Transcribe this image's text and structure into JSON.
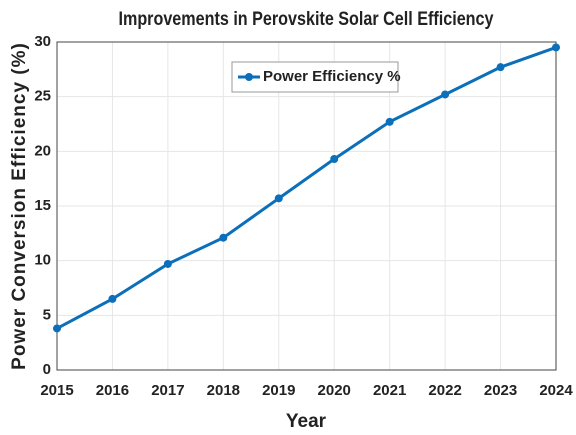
{
  "chart_data": {
    "type": "line",
    "title": "Improvements in Perovskite Solar Cell Efficiency",
    "x_label": "Year",
    "y_label": "Power Conversion Efficiency (%)",
    "x": [
      2015,
      2016,
      2017,
      2018,
      2019,
      2020,
      2021,
      2022,
      2023,
      2024
    ],
    "series": [
      {
        "name": "Power Efficiency %",
        "color": "#0b6fba",
        "values": [
          3.8,
          6.5,
          9.7,
          12.1,
          15.7,
          19.3,
          22.7,
          25.2,
          27.7,
          29.5
        ]
      }
    ],
    "xlim": [
      2015,
      2024
    ],
    "xticks": [
      2015,
      2016,
      2017,
      2018,
      2019,
      2020,
      2021,
      2022,
      2023,
      2024
    ],
    "ylim": [
      0,
      30
    ],
    "yticks": [
      0,
      5,
      10,
      15,
      20,
      25,
      30
    ],
    "grid": true,
    "legend": "top"
  }
}
